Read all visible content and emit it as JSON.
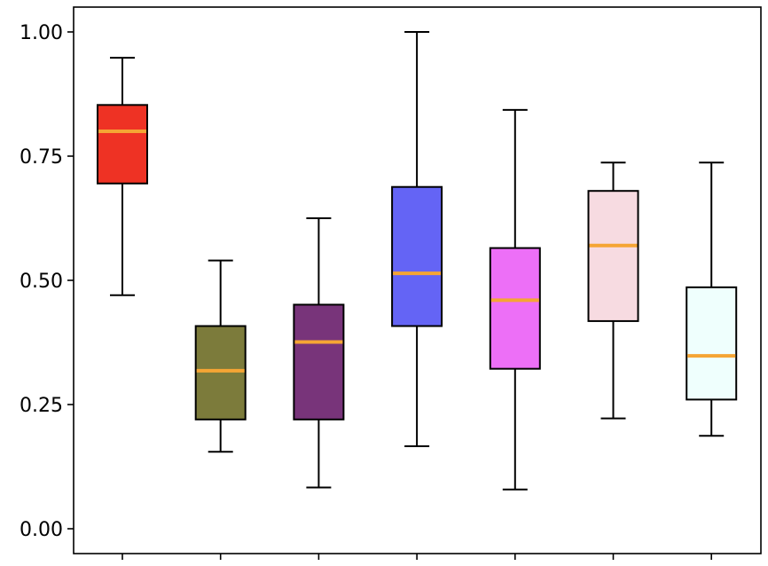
{
  "chart_data": {
    "type": "box",
    "title": "",
    "xlabel": "",
    "ylabel": "",
    "ylim": [
      -0.05,
      1.05
    ],
    "yticks": [
      0.0,
      0.25,
      0.5,
      0.75,
      1.0
    ],
    "ytick_labels": [
      "0.00",
      "0.25",
      "0.50",
      "0.75",
      "1.00"
    ],
    "grid": false,
    "legend": "none",
    "median_color": "#f5a534",
    "boxes": [
      {
        "whisker_low": 0.47,
        "q1": 0.695,
        "median": 0.8,
        "q3": 0.853,
        "whisker_high": 0.948,
        "color": "#ee3224"
      },
      {
        "whisker_low": 0.155,
        "q1": 0.22,
        "median": 0.318,
        "q3": 0.408,
        "whisker_high": 0.54,
        "color": "#7c7b3b"
      },
      {
        "whisker_low": 0.083,
        "q1": 0.22,
        "median": 0.376,
        "q3": 0.451,
        "whisker_high": 0.625,
        "color": "#78347a"
      },
      {
        "whisker_low": 0.166,
        "q1": 0.408,
        "median": 0.514,
        "q3": 0.688,
        "whisker_high": 1.0,
        "color": "#6464f5"
      },
      {
        "whisker_low": 0.079,
        "q1": 0.322,
        "median": 0.46,
        "q3": 0.565,
        "whisker_high": 0.843,
        "color": "#ed6ff7"
      },
      {
        "whisker_low": 0.222,
        "q1": 0.418,
        "median": 0.57,
        "q3": 0.68,
        "whisker_high": 0.737,
        "color": "#f7dbe1"
      },
      {
        "whisker_low": 0.187,
        "q1": 0.26,
        "median": 0.348,
        "q3": 0.486,
        "whisker_high": 0.737,
        "color": "#effffd"
      }
    ]
  }
}
